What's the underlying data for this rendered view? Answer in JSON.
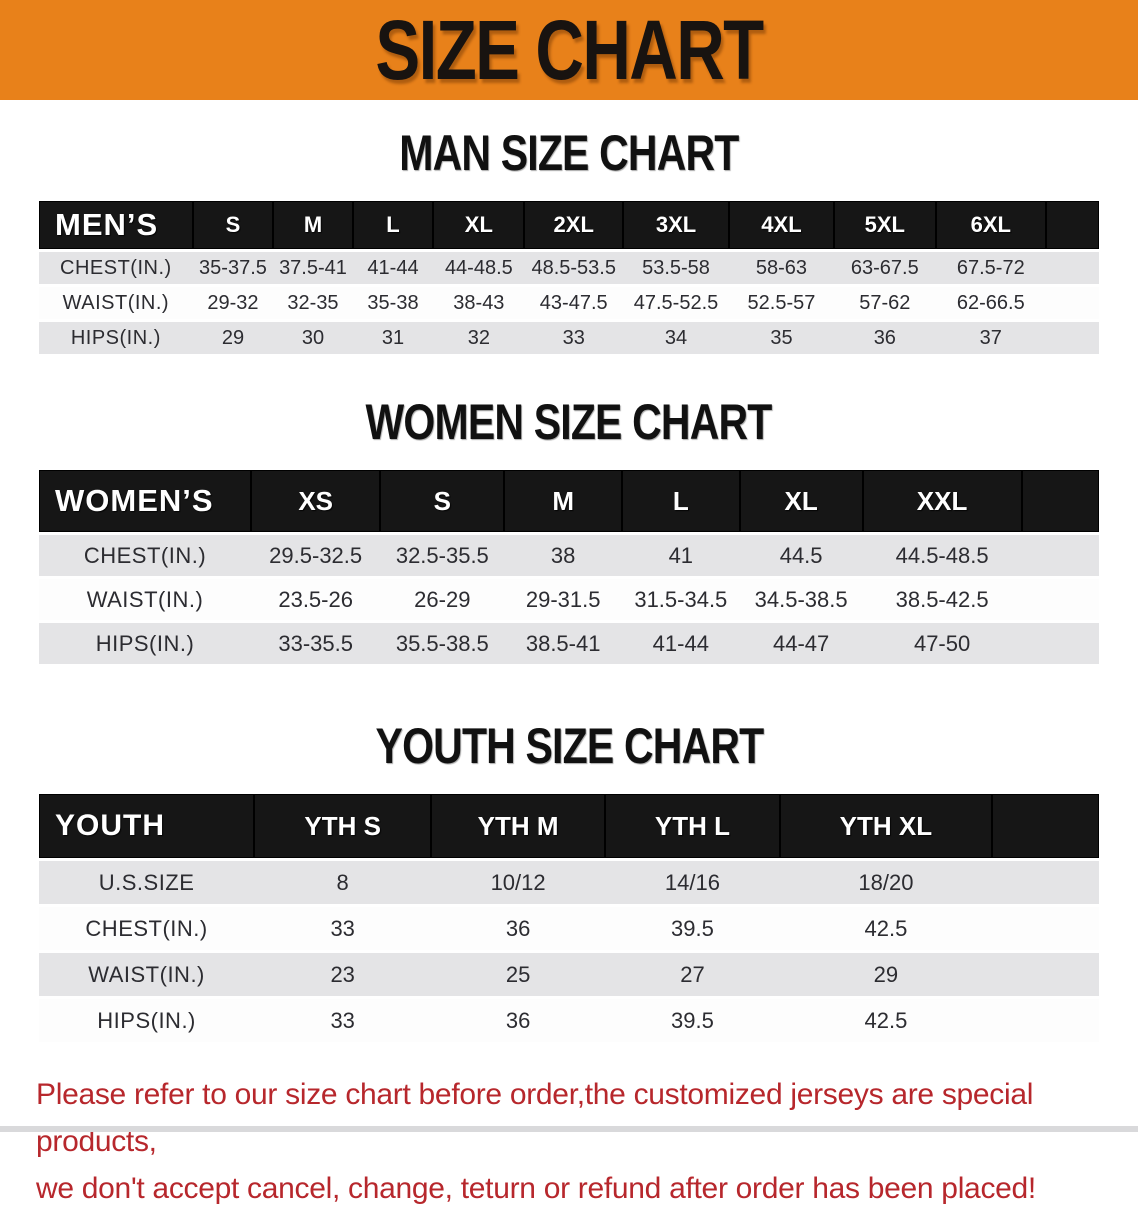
{
  "banner": {
    "title": "SIZE CHART"
  },
  "colors": {
    "banner_bg": "#E8811A",
    "header_bar": "#161616",
    "row_stripe": "#E4E4E6",
    "disclaimer_red": "#B7272C"
  },
  "sections": [
    {
      "heading": "MAN SIZE CHART",
      "table": {
        "label": "MEN’S",
        "columns": [
          "S",
          "M",
          "L",
          "XL",
          "2XL",
          "3XL",
          "4XL",
          "5XL",
          "6XL"
        ],
        "rows": [
          {
            "label": "CHEST(IN.)",
            "values": [
              "35-37.5",
              "37.5-41",
              "41-44",
              "44-48.5",
              "48.5-53.5",
              "53.5-58",
              "58-63",
              "63-67.5",
              "67.5-72"
            ]
          },
          {
            "label": "WAIST(IN.)",
            "values": [
              "29-32",
              "32-35",
              "35-38",
              "38-43",
              "43-47.5",
              "47.5-52.5",
              "52.5-57",
              "57-62",
              "62-66.5"
            ]
          },
          {
            "label": "HIPS(IN.)",
            "values": [
              "29",
              "30",
              "31",
              "32",
              "33",
              "34",
              "35",
              "36",
              "37"
            ]
          }
        ]
      }
    },
    {
      "heading": "WOMEN SIZE CHART",
      "table": {
        "label": "WOMEN’S",
        "columns": [
          "XS",
          "S",
          "M",
          "L",
          "XL",
          "XXL"
        ],
        "rows": [
          {
            "label": "CHEST(IN.)",
            "values": [
              "29.5-32.5",
              "32.5-35.5",
              "38",
              "41",
              "44.5",
              "44.5-48.5"
            ]
          },
          {
            "label": "WAIST(IN.)",
            "values": [
              "23.5-26",
              "26-29",
              "29-31.5",
              "31.5-34.5",
              "34.5-38.5",
              "38.5-42.5"
            ]
          },
          {
            "label": "HIPS(IN.)",
            "values": [
              "33-35.5",
              "35.5-38.5",
              "38.5-41",
              "41-44",
              "44-47",
              "47-50"
            ]
          }
        ]
      }
    },
    {
      "heading": "YOUTH SIZE CHART",
      "table": {
        "label": "YOUTH",
        "columns": [
          "YTH S",
          "YTH M",
          "YTH L",
          "YTH XL"
        ],
        "rows": [
          {
            "label": "U.S.SIZE",
            "values": [
              "8",
              "10/12",
              "14/16",
              "18/20"
            ]
          },
          {
            "label": "CHEST(IN.)",
            "values": [
              "33",
              "36",
              "39.5",
              "42.5"
            ]
          },
          {
            "label": "WAIST(IN.)",
            "values": [
              "23",
              "25",
              "27",
              "29"
            ]
          },
          {
            "label": "HIPS(IN.)",
            "values": [
              "33",
              "36",
              "39.5",
              "42.5"
            ]
          }
        ]
      }
    }
  ],
  "disclaimer": {
    "line1": "Please refer to our size chart before order,the customized jerseys are special products,",
    "line2": "we don't accept cancel, change, teturn or refund after order has been placed!"
  }
}
